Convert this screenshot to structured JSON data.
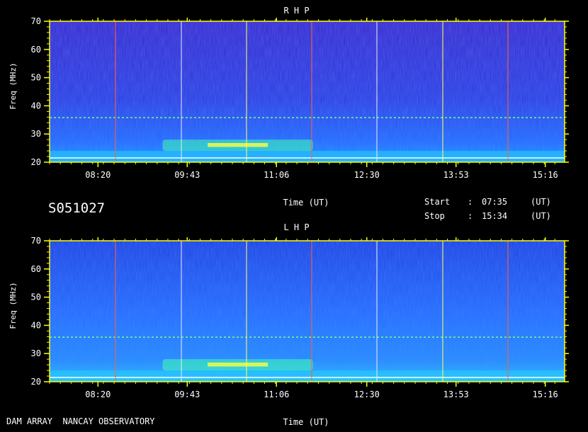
{
  "record_id": "S051027",
  "footer": {
    "instrument": "DAM ARRAY  NANCAY OBSERVATORY"
  },
  "times": {
    "start_label": "Start",
    "start_sep": ":",
    "start_value": "07:35",
    "start_unit": "(UT)",
    "stop_label": "Stop",
    "stop_sep": ":",
    "stop_value": "15:34",
    "stop_unit": "(UT)"
  },
  "colors": {
    "background": "#000000",
    "axis": "#ffff00",
    "text": "#ffffff",
    "spectrum_low": "#2a1fd6",
    "spectrum_mid": "#1f6bff",
    "spectrum_high": "#ffff00"
  },
  "chart_data": [
    {
      "type": "heatmap",
      "title": "R H P",
      "xlabel": "Time (UT)",
      "ylabel": "Freq (MHz)",
      "x_ticks": [
        "08:20",
        "09:43",
        "11:06",
        "12:30",
        "13:53",
        "15:16"
      ],
      "y_ticks": [
        20,
        30,
        40,
        50,
        60,
        70
      ],
      "ylim": [
        20,
        70
      ],
      "xlim": [
        "07:35",
        "15:34"
      ],
      "features": [
        {
          "name": "emission-band",
          "freq_from": 24,
          "freq_to": 28,
          "time_from": "09:20",
          "time_to": "11:40"
        },
        {
          "name": "interference-line",
          "freq": 35.8
        },
        {
          "name": "interference-line",
          "freq": 21.5
        }
      ]
    },
    {
      "type": "heatmap",
      "title": "L H P",
      "xlabel": "Time (UT)",
      "ylabel": "Freq (MHz)",
      "x_ticks": [
        "08:20",
        "09:43",
        "11:06",
        "12:30",
        "13:53",
        "15:16"
      ],
      "y_ticks": [
        20,
        30,
        40,
        50,
        60,
        70
      ],
      "ylim": [
        20,
        70
      ],
      "xlim": [
        "07:35",
        "15:34"
      ],
      "features": [
        {
          "name": "emission-band",
          "freq_from": 24,
          "freq_to": 28,
          "time_from": "09:20",
          "time_to": "11:40"
        },
        {
          "name": "interference-line",
          "freq": 35.8
        },
        {
          "name": "interference-line",
          "freq": 21.5
        }
      ]
    }
  ]
}
